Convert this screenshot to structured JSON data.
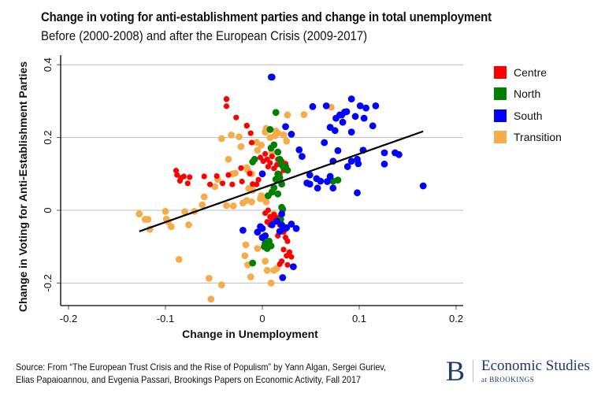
{
  "header": {
    "title": "Change in voting for anti-establishment parties and change in total unemployment",
    "subtitle": "Before (2000-2008) and after the European Crisis (2009-2017)"
  },
  "footer": {
    "source_line1": "Source: From “The European Trust Crisis and the Rise of Populism” by Yann Algan, Sergei Guriev,",
    "source_line2": "Elias Papaioannou, and Evgenia Passari, Brookings Papers on Economic Activity, Fall 2017",
    "logo_letter": "B",
    "logo_main": "Economic Studies",
    "logo_sub": "at BROOKINGS"
  },
  "colors": {
    "Centre": "#ff0000",
    "North": "#008000",
    "South": "#0000ff",
    "Transition": "#f5ad4c",
    "brand": "#1d3a6b"
  },
  "chart_data": {
    "type": "scatter",
    "title": "Change in voting for anti-establishment parties and change in total unemployment",
    "subtitle": "Before (2000-2008) and after the European Crisis (2009-2017)",
    "xlabel": "Change in Unemployment",
    "ylabel": "Change in Voting for Anti-Establishment Parties",
    "xlim": [
      -0.205,
      0.205
    ],
    "ylim": [
      -0.26,
      0.42
    ],
    "xticks": [
      -0.2,
      -0.1,
      0,
      0.1,
      0.2
    ],
    "xtick_labels": [
      "-0.2",
      "-0.1",
      "0",
      "0.1",
      "0.2"
    ],
    "yticks": [
      -0.2,
      0,
      0.2,
      0.4
    ],
    "ytick_labels": [
      "-0.2",
      "0",
      "0.2",
      "0.4"
    ],
    "grid": "horizontal",
    "legend": {
      "position": "right",
      "entries": [
        "Centre",
        "North",
        "South",
        "Transition"
      ]
    },
    "fit_line": {
      "x": [
        -0.127,
        0.166
      ],
      "y": [
        -0.058,
        0.217
      ]
    },
    "series": [
      {
        "name": "Centre",
        "points": [
          [
            -0.089,
            0.109
          ],
          [
            -0.088,
            0.097
          ],
          [
            -0.085,
            0.081
          ],
          [
            -0.084,
            0.089
          ],
          [
            -0.081,
            0.093
          ],
          [
            -0.077,
            0.074
          ],
          [
            -0.075,
            0.091
          ],
          [
            -0.06,
            0.093
          ],
          [
            -0.054,
            0.071
          ],
          [
            -0.047,
            0.094
          ],
          [
            -0.041,
            0.074
          ],
          [
            -0.037,
            0.305
          ],
          [
            -0.037,
            0.306
          ],
          [
            -0.037,
            0.286
          ],
          [
            -0.035,
            0.097
          ],
          [
            -0.031,
            0.071
          ],
          [
            -0.027,
            0.255
          ],
          [
            -0.022,
            0.116
          ],
          [
            -0.021,
            0.079
          ],
          [
            -0.016,
            0.233
          ],
          [
            -0.016,
            0.232
          ],
          [
            -0.013,
            0.101
          ],
          [
            -0.012,
            0.212
          ],
          [
            -0.011,
            0.186
          ],
          [
            -0.01,
            0.072
          ],
          [
            -0.006,
            0.071
          ],
          [
            -0.004,
            0.084
          ],
          [
            -0.002,
            0.145
          ],
          [
            0.001,
            0.135
          ],
          [
            0.003,
            0.155
          ],
          [
            0.005,
            0.14
          ],
          [
            0.006,
            0.12
          ],
          [
            0.008,
            0.13
          ],
          [
            0.01,
            0.148
          ],
          [
            0.012,
            0.115
          ],
          [
            0.015,
            0.125
          ],
          [
            0.016,
            0.14
          ],
          [
            0.018,
            0.1
          ],
          [
            0.02,
            0.135
          ],
          [
            0.022,
            0.11
          ],
          [
            0.024,
            0.128
          ],
          [
            0.003,
            -0.008
          ],
          [
            0.006,
            0.0
          ],
          [
            0.008,
            -0.018
          ],
          [
            0.01,
            -0.025
          ],
          [
            0.012,
            -0.012
          ],
          [
            0.005,
            -0.032
          ],
          [
            0.008,
            -0.04
          ],
          [
            0.015,
            -0.02
          ],
          [
            0.018,
            -0.04
          ],
          [
            0.022,
            -0.06
          ],
          [
            0.024,
            -0.075
          ],
          [
            0.026,
            -0.085
          ],
          [
            0.022,
            -0.108
          ],
          [
            0.025,
            -0.125
          ],
          [
            0.028,
            -0.115
          ],
          [
            0.03,
            -0.128
          ],
          [
            0.02,
            -0.14
          ],
          [
            0.018,
            -0.148
          ],
          [
            0.026,
            -0.15
          ],
          [
            0.016,
            -0.07
          ],
          [
            0.024,
            -0.052
          ]
        ]
      },
      {
        "name": "North",
        "points": [
          [
            0.009,
            0.366
          ],
          [
            0.014,
            0.269
          ],
          [
            0.008,
            0.222
          ],
          [
            0.009,
            0.171
          ],
          [
            -0.01,
            0.133
          ],
          [
            -0.008,
            0.14
          ],
          [
            0.012,
            0.18
          ],
          [
            0.016,
            0.16
          ],
          [
            0.018,
            0.14
          ],
          [
            0.02,
            0.125
          ],
          [
            0.022,
            0.118
          ],
          [
            0.024,
            0.12
          ],
          [
            0.026,
            0.11
          ],
          [
            0.016,
            0.1
          ],
          [
            0.018,
            0.09
          ],
          [
            0.02,
            0.072
          ],
          [
            0.014,
            0.085
          ],
          [
            0.012,
            0.062
          ],
          [
            0.01,
            0.05
          ],
          [
            0.016,
            0.045
          ],
          [
            0.006,
            0.04
          ],
          [
            0.02,
            0.008
          ],
          [
            0.021,
            0.003
          ],
          [
            0.003,
            -0.09
          ],
          [
            0.006,
            -0.095
          ],
          [
            0.009,
            -0.098
          ],
          [
            0.002,
            -0.1
          ],
          [
            0.005,
            -0.105
          ],
          [
            0.007,
            -0.085
          ],
          [
            -0.01,
            -0.145
          ],
          [
            0.019,
            -0.025
          ],
          [
            0.073,
            0.08
          ],
          [
            0.078,
            0.083
          ]
        ]
      },
      {
        "name": "South",
        "points": [
          [
            0.01,
            0.366
          ],
          [
            0.024,
            0.23
          ],
          [
            0.03,
            0.209
          ],
          [
            0.038,
            0.166
          ],
          [
            0.041,
            0.148
          ],
          [
            0.052,
            0.285
          ],
          [
            0.066,
            0.287
          ],
          [
            0.076,
            0.253
          ],
          [
            0.08,
            0.262
          ],
          [
            0.082,
            0.262
          ],
          [
            0.085,
            0.27
          ],
          [
            0.087,
            0.271
          ],
          [
            0.083,
            0.242
          ],
          [
            0.092,
            0.306
          ],
          [
            0.101,
            0.287
          ],
          [
            0.107,
            0.281
          ],
          [
            0.117,
            0.287
          ],
          [
            0.105,
            0.253
          ],
          [
            0.114,
            0.232
          ],
          [
            0.092,
            0.215
          ],
          [
            0.096,
            0.258
          ],
          [
            0.07,
            0.228
          ],
          [
            0.075,
            0.219
          ],
          [
            0.064,
            0.186
          ],
          [
            0.078,
            0.164
          ],
          [
            0.098,
            0.14
          ],
          [
            0.104,
            0.165
          ],
          [
            0.092,
            0.135
          ],
          [
            0.088,
            0.12
          ],
          [
            0.073,
            0.135
          ],
          [
            0.056,
            0.087
          ],
          [
            0.06,
            0.08
          ],
          [
            0.057,
            0.061
          ],
          [
            0.067,
            0.079
          ],
          [
            0.07,
            0.093
          ],
          [
            0.049,
            0.097
          ],
          [
            0.046,
            0.075
          ],
          [
            0.099,
            0.128
          ],
          [
            0.126,
            0.158
          ],
          [
            0.137,
            0.158
          ],
          [
            0.141,
            0.153
          ],
          [
            0.126,
            0.127
          ],
          [
            0.098,
            0.048
          ],
          [
            0.166,
            0.067
          ],
          [
            0.073,
            0.061
          ],
          [
            0.049,
            0.072
          ],
          [
            0.0,
            0.1
          ],
          [
            -0.02,
            -0.055
          ],
          [
            -0.005,
            -0.06
          ],
          [
            0.0,
            -0.075
          ],
          [
            0.003,
            -0.07
          ],
          [
            0.01,
            -0.04
          ],
          [
            0.015,
            -0.03
          ],
          [
            0.02,
            -0.04
          ],
          [
            0.025,
            -0.048
          ],
          [
            0.022,
            -0.05
          ],
          [
            0.03,
            -0.038
          ],
          [
            0.018,
            -0.058
          ],
          [
            0.02,
            -0.01
          ],
          [
            0.035,
            -0.05
          ],
          [
            0.032,
            -0.155
          ],
          [
            0.021,
            -0.185
          ],
          [
            -0.002,
            -0.045
          ],
          [
            0.0,
            -0.05
          ]
        ]
      },
      {
        "name": "Transition",
        "points": [
          [
            -0.127,
            -0.01
          ],
          [
            -0.121,
            -0.025
          ],
          [
            -0.118,
            -0.025
          ],
          [
            -0.116,
            -0.052
          ],
          [
            -0.1,
            -0.003
          ],
          [
            -0.099,
            -0.024
          ],
          [
            -0.097,
            -0.032
          ],
          [
            -0.094,
            -0.045
          ],
          [
            -0.086,
            -0.135
          ],
          [
            -0.08,
            -0.004
          ],
          [
            -0.076,
            -0.04
          ],
          [
            -0.07,
            -0.003
          ],
          [
            -0.062,
            0.015
          ],
          [
            -0.06,
            0.037
          ],
          [
            -0.055,
            -0.187
          ],
          [
            -0.053,
            -0.244
          ],
          [
            -0.049,
            0.065
          ],
          [
            -0.046,
            0.085
          ],
          [
            -0.042,
            -0.205
          ],
          [
            -0.042,
            0.197
          ],
          [
            -0.035,
            0.14
          ],
          [
            -0.032,
            0.207
          ],
          [
            -0.031,
            0.1
          ],
          [
            -0.028,
            0.102
          ],
          [
            -0.024,
            0.202
          ],
          [
            -0.022,
            0.175
          ],
          [
            -0.016,
            0.117
          ],
          [
            -0.015,
            0.11
          ],
          [
            -0.011,
            0.1
          ],
          [
            -0.014,
            0.06
          ],
          [
            -0.01,
            0.055
          ],
          [
            -0.018,
            -0.125
          ],
          [
            -0.015,
            -0.15
          ],
          [
            -0.012,
            -0.183
          ],
          [
            -0.016,
            0.027
          ],
          [
            -0.011,
            0.023
          ],
          [
            -0.03,
            0.012
          ],
          [
            -0.037,
            0.013
          ],
          [
            -0.02,
            0.02
          ],
          [
            -0.017,
            -0.095
          ],
          [
            -0.002,
            0.032
          ],
          [
            0.004,
            0.023
          ],
          [
            -0.001,
            0.04
          ],
          [
            0.003,
            0.03
          ],
          [
            -0.005,
            0.165
          ],
          [
            -0.006,
            0.187
          ],
          [
            -0.001,
            0.179
          ],
          [
            0.003,
            0.215
          ],
          [
            0.004,
            0.225
          ],
          [
            0.008,
            0.2
          ],
          [
            0.013,
            0.205
          ],
          [
            0.014,
            0.218
          ],
          [
            0.016,
            0.212
          ],
          [
            0.022,
            0.207
          ],
          [
            0.025,
            0.19
          ],
          [
            0.026,
            0.262
          ],
          [
            0.043,
            0.263
          ],
          [
            0.01,
            0.16
          ],
          [
            0.005,
            -0.165
          ],
          [
            0.012,
            -0.165
          ],
          [
            0.009,
            -0.2
          ],
          [
            0.012,
            -0.01
          ],
          [
            0.018,
            -0.025
          ],
          [
            0.015,
            -0.16
          ],
          [
            0.003,
            -0.14
          ],
          [
            -0.005,
            -0.105
          ],
          [
            0.0,
            -0.075
          ],
          [
            0.071,
            0.283
          ]
        ]
      }
    ]
  }
}
